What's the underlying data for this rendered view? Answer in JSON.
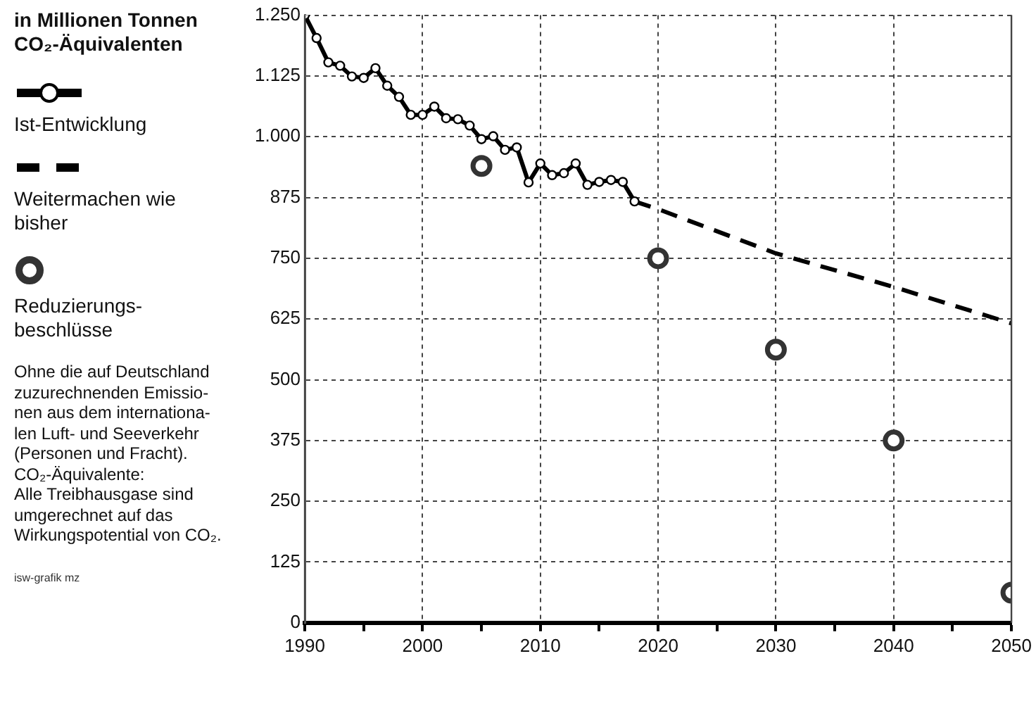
{
  "chart_data": {
    "type": "line",
    "title": "in Millionen Tonnen CO₂-Äquivalenten",
    "xlim": [
      1990,
      2050
    ],
    "xticks": [
      1990,
      {
        "value": 1995,
        "label": null
      },
      2000,
      {
        "value": 2005,
        "label": null
      },
      2010,
      {
        "value": 2015,
        "label": null
      },
      2020,
      {
        "value": 2025,
        "label": null
      },
      2030,
      {
        "value": 2035,
        "label": null
      },
      2040,
      {
        "value": 2045,
        "label": null
      },
      2050
    ],
    "ylim": [
      0,
      1250
    ],
    "yticks": [
      0,
      125,
      250,
      375,
      500,
      625,
      750,
      875,
      {
        "value": 1000,
        "label": "1.000"
      },
      {
        "value": 1125,
        "label": "1.125"
      },
      {
        "value": 1250,
        "label": "1.250"
      }
    ],
    "grid": true,
    "legend": "left",
    "series": [
      {
        "name": "Ist-Entwicklung",
        "type": "line",
        "color": "#000000",
        "marker": "circle",
        "line_style": "solid",
        "x": [
          1990,
          1991,
          1992,
          1993,
          1994,
          1995,
          1996,
          1997,
          1998,
          1999,
          2000,
          2001,
          2002,
          2003,
          2004,
          2005,
          2006,
          2007,
          2008,
          2009,
          2010,
          2011,
          2012,
          2013,
          2014,
          2015,
          2016,
          2017,
          2018
        ],
        "values": [
          1250,
          1203,
          1153,
          1146,
          1124,
          1121,
          1141,
          1105,
          1082,
          1045,
          1045,
          1062,
          1038,
          1036,
          1023,
          995,
          1001,
          973,
          978,
          906,
          945,
          921,
          925,
          945,
          901,
          907,
          911,
          907,
          867
        ]
      },
      {
        "name": "Weitermachen wie bisher",
        "type": "line",
        "color": "#000000",
        "marker": "none",
        "line_style": "dashed",
        "x": [
          2018,
          2020,
          2030,
          2040,
          2050
        ],
        "values": [
          867,
          851,
          760,
          691,
          616
        ]
      },
      {
        "name": "Reduzierungs-beschlüsse",
        "type": "scatter",
        "color": "#333333",
        "marker": "circle",
        "x": [
          2005,
          2020,
          2030,
          2040,
          2050
        ],
        "values": [
          940,
          750,
          562,
          375,
          62
        ]
      }
    ],
    "annotations": [
      "Ohne die auf Deutschland\nzuzurechnenden Emissio-\nnen aus dem internationa-\nlen Luft- und Seeverkehr\n(Personen und Fracht).\nCO₂-Äquivalente:\nAlle Treibhausgase sind\numgerechnet auf das\nWirkungspotential von CO₂.",
      "isw-grafik mz"
    ]
  }
}
